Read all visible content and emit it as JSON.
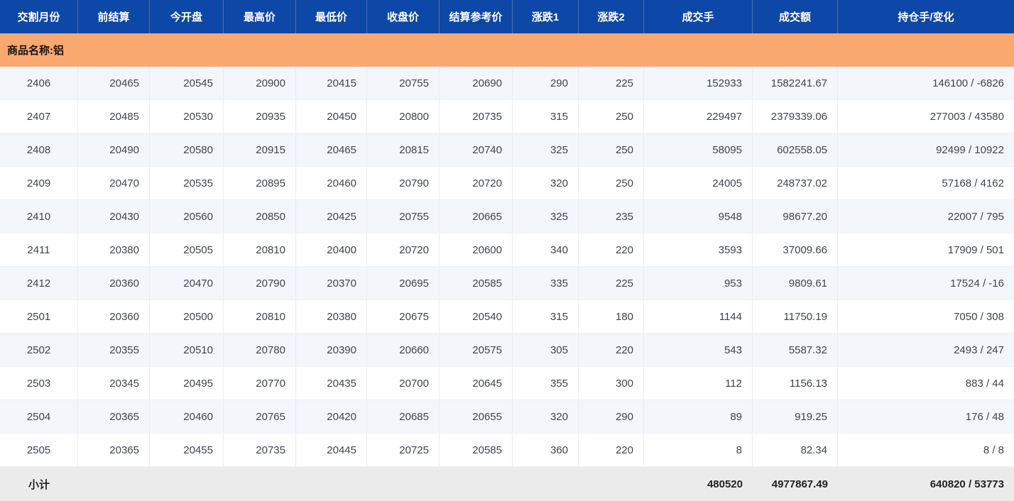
{
  "theme": {
    "header_bg": "#0d47a8",
    "header_text": "#ffffff",
    "header_divider": "#5f6e8c",
    "group_bg": "#f9a870",
    "row_alt_bg": "#f3f6fa",
    "subtotal_bg": "#ebebeb",
    "cell_text": "#3f444c"
  },
  "table": {
    "columns": [
      "交割月份",
      "前结算",
      "今开盘",
      "最高价",
      "最低价",
      "收盘价",
      "结算参考价",
      "涨跌1",
      "涨跌2",
      "成交手",
      "成交额",
      "持仓手/变化"
    ],
    "group_label": "商品名称:铝",
    "rows": [
      [
        "2406",
        "20465",
        "20545",
        "20900",
        "20415",
        "20755",
        "20690",
        "290",
        "225",
        "152933",
        "1582241.67",
        "146100 / -6826"
      ],
      [
        "2407",
        "20485",
        "20530",
        "20935",
        "20450",
        "20800",
        "20735",
        "315",
        "250",
        "229497",
        "2379339.06",
        "277003 / 43580"
      ],
      [
        "2408",
        "20490",
        "20580",
        "20915",
        "20465",
        "20815",
        "20740",
        "325",
        "250",
        "58095",
        "602558.05",
        "92499 / 10922"
      ],
      [
        "2409",
        "20470",
        "20535",
        "20895",
        "20460",
        "20790",
        "20720",
        "320",
        "250",
        "24005",
        "248737.02",
        "57168 / 4162"
      ],
      [
        "2410",
        "20430",
        "20560",
        "20850",
        "20425",
        "20755",
        "20665",
        "325",
        "235",
        "9548",
        "98677.20",
        "22007 / 795"
      ],
      [
        "2411",
        "20380",
        "20505",
        "20810",
        "20400",
        "20720",
        "20600",
        "340",
        "220",
        "3593",
        "37009.66",
        "17909 / 501"
      ],
      [
        "2412",
        "20360",
        "20470",
        "20790",
        "20370",
        "20695",
        "20585",
        "335",
        "225",
        "953",
        "9809.61",
        "17524 / -16"
      ],
      [
        "2501",
        "20360",
        "20500",
        "20810",
        "20380",
        "20675",
        "20540",
        "315",
        "180",
        "1144",
        "11750.19",
        "7050 / 308"
      ],
      [
        "2502",
        "20355",
        "20510",
        "20780",
        "20390",
        "20660",
        "20575",
        "305",
        "220",
        "543",
        "5587.32",
        "2493 / 247"
      ],
      [
        "2503",
        "20345",
        "20495",
        "20770",
        "20435",
        "20700",
        "20645",
        "355",
        "300",
        "112",
        "1156.13",
        "883 / 44"
      ],
      [
        "2504",
        "20365",
        "20460",
        "20765",
        "20420",
        "20685",
        "20655",
        "320",
        "290",
        "89",
        "919.25",
        "176 / 48"
      ],
      [
        "2505",
        "20365",
        "20455",
        "20735",
        "20445",
        "20725",
        "20585",
        "360",
        "220",
        "8",
        "82.34",
        "8 / 8"
      ]
    ],
    "subtotal": {
      "label": "小计",
      "volume": "480520",
      "turnover": "4977867.49",
      "open_interest_change": "640820 / 53773"
    }
  }
}
